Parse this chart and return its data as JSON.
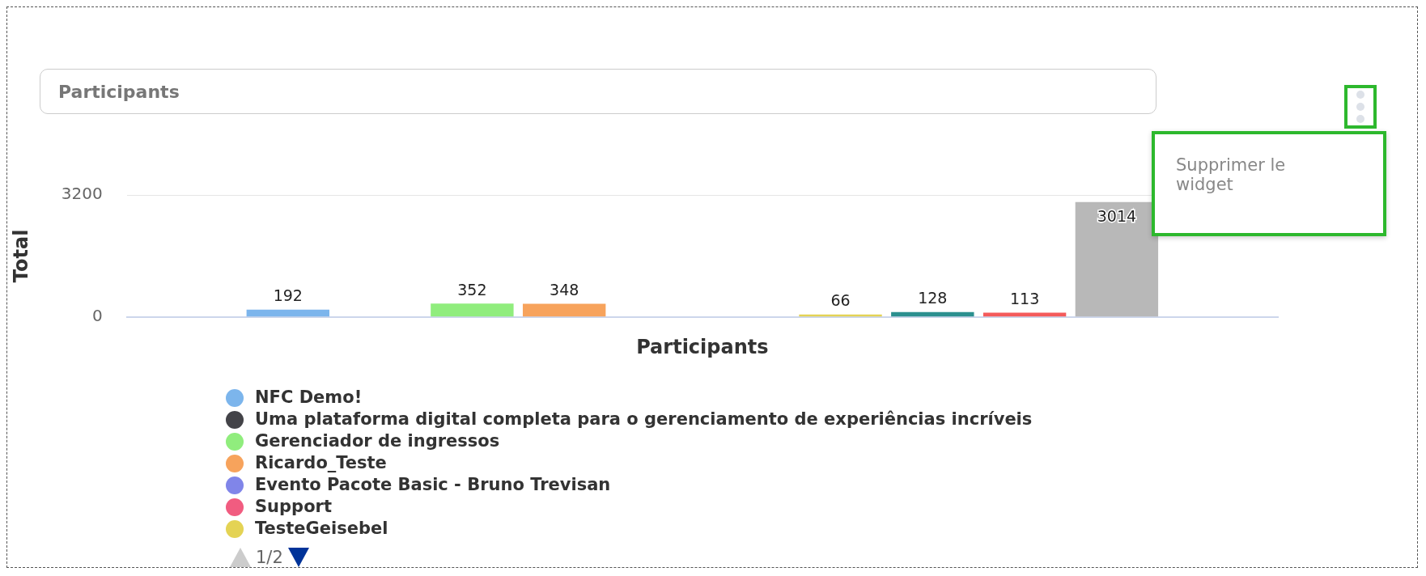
{
  "chart_data": {
    "type": "bar",
    "title": "Participants",
    "xlabel": "Participants",
    "ylabel": "Total",
    "categories": [
      null
    ],
    "series": [
      {
        "name": "NFC Demo!",
        "color": "#7cb5ec",
        "values": [
          192
        ]
      },
      {
        "name": "Uma plataforma digital completa para o gerenciamento de experiências incríveis",
        "color": "#434348",
        "values": [
          null
        ]
      },
      {
        "name": "Gerenciador de ingressos",
        "color": "#90ed7d",
        "values": [
          352
        ]
      },
      {
        "name": "Ricardo_Teste",
        "color": "#f7a35c",
        "values": [
          348
        ]
      },
      {
        "name": "Evento Pacote Basic - Bruno Trevisan",
        "color": "#8085e9",
        "values": [
          null
        ]
      },
      {
        "name": "Support",
        "color": "#f15c80",
        "values": [
          null
        ]
      },
      {
        "name": "TesteGeisebel",
        "color": "#e4d354",
        "values": [
          66
        ]
      },
      {
        "color": "#2b908f",
        "values": [
          128
        ]
      },
      {
        "color": "#f45b5b",
        "values": [
          113
        ]
      },
      {
        "color": "#b8b8b8",
        "values": [
          3014
        ]
      }
    ],
    "ylim": [
      0,
      3200
    ],
    "yticks": [
      0,
      3200
    ],
    "grid": "y",
    "data_labels": true,
    "legend": "bottom",
    "annotations": [
      "Supprimer le widget",
      "1/2"
    ]
  }
}
